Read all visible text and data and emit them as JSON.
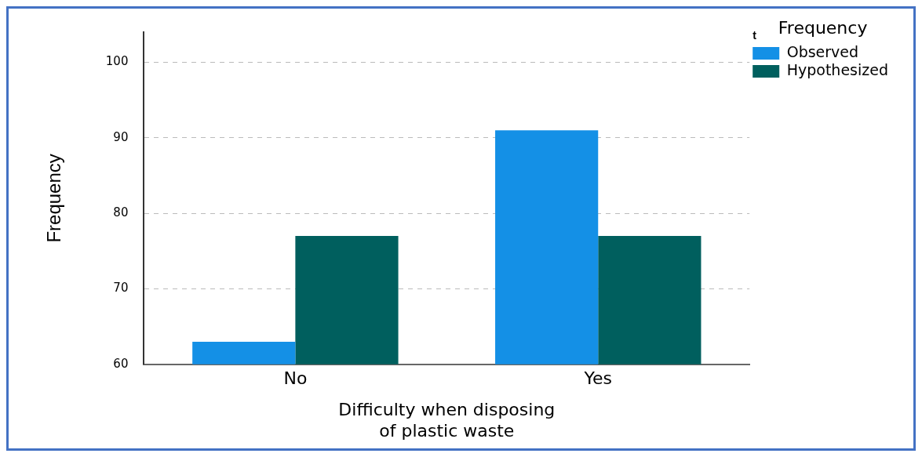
{
  "chart_data": {
    "type": "bar",
    "xlabel": "Difficulty when disposing of plastic waste",
    "ylabel": "Frequency",
    "legend_title": "Frequency",
    "categories": [
      "No",
      "Yes"
    ],
    "series": [
      {
        "name": "Observed",
        "color": "#1490e6",
        "values": [
          63,
          91
        ]
      },
      {
        "name": "Hypothesized",
        "color": "#005f5e",
        "values": [
          77,
          77
        ]
      }
    ],
    "ylim": [
      60,
      104
    ],
    "yticks": [
      60,
      70,
      80,
      90,
      100
    ],
    "grid": "y",
    "legend": "top right",
    "annotations": [
      "t"
    ]
  }
}
